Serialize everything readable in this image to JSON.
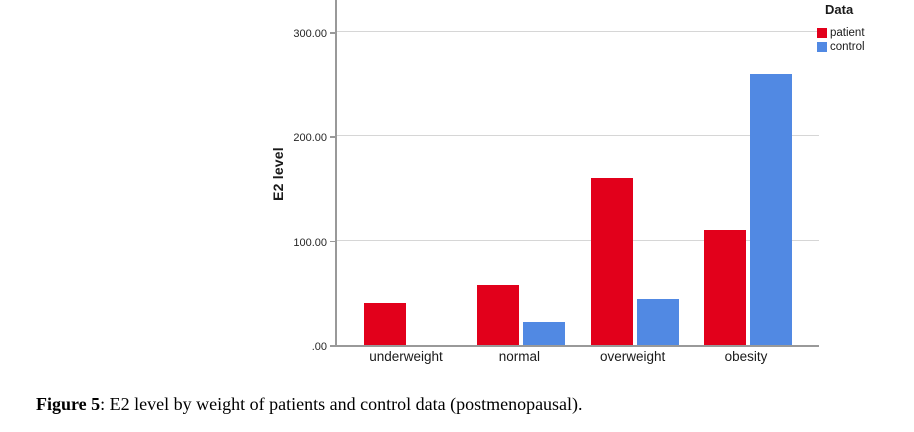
{
  "figure": {
    "caption_prefix": "Figure 5",
    "caption_rest": ": E2 level by weight of patients and control data (postmenopausal)."
  },
  "chart_data": {
    "type": "bar",
    "title": "",
    "categories": [
      "underweight",
      "normal",
      "overweight",
      "obesity"
    ],
    "series": [
      {
        "name": "patient",
        "color": "#e2001b",
        "values": [
          40,
          58,
          160,
          110
        ]
      },
      {
        "name": "control",
        "color": "#5189e3",
        "values": [
          0,
          22,
          44,
          260
        ]
      }
    ],
    "xlabel": "",
    "ylabel": "E2 level",
    "ylim": [
      0,
      330
    ],
    "yticks": [
      {
        "value": 0,
        "label": ".00"
      },
      {
        "value": 100,
        "label": "100.00"
      },
      {
        "value": 200,
        "label": "200.00"
      },
      {
        "value": 300,
        "label": "300.00"
      }
    ],
    "grid": true,
    "legend_title": "Data",
    "legend_position": "top-right",
    "grid_color": "#d6d6d6",
    "axis_color": "#999999"
  }
}
